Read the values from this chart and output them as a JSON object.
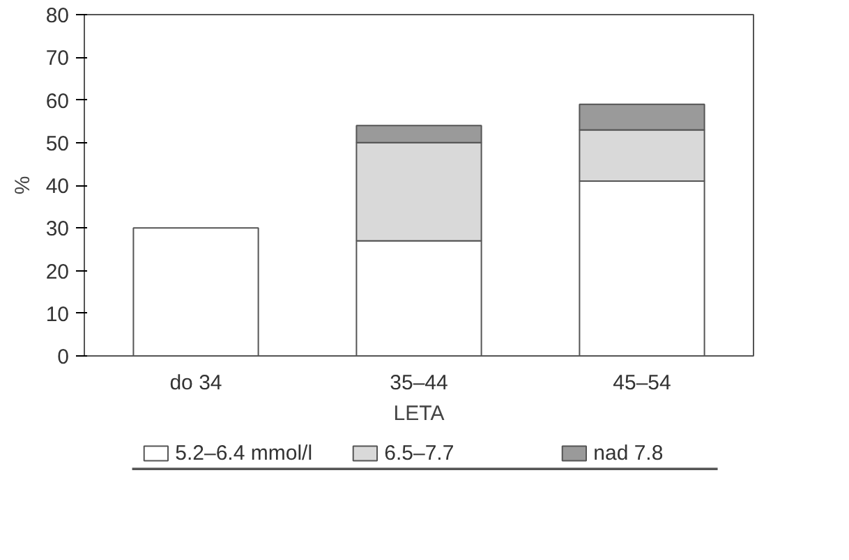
{
  "chart_data": {
    "type": "bar",
    "stacked": true,
    "xlabel": "LETA",
    "ylabel": "%",
    "categories": [
      "do 34",
      "35–44",
      "45–54"
    ],
    "series": [
      {
        "name": "5.2–6.4 mmol/l",
        "color": "#ffffff",
        "values": [
          30,
          27,
          41
        ]
      },
      {
        "name": "6.5–7.7",
        "color": "#d9d9d9",
        "values": [
          null,
          23,
          12
        ]
      },
      {
        "name": "nad 7.8",
        "color": "#9a9a9a",
        "values": [
          null,
          4,
          6
        ]
      }
    ],
    "ylim": [
      0,
      80
    ],
    "yticks": [
      0,
      10,
      20,
      30,
      40,
      50,
      60,
      70,
      80
    ],
    "legend": "bottom",
    "grid": false
  }
}
